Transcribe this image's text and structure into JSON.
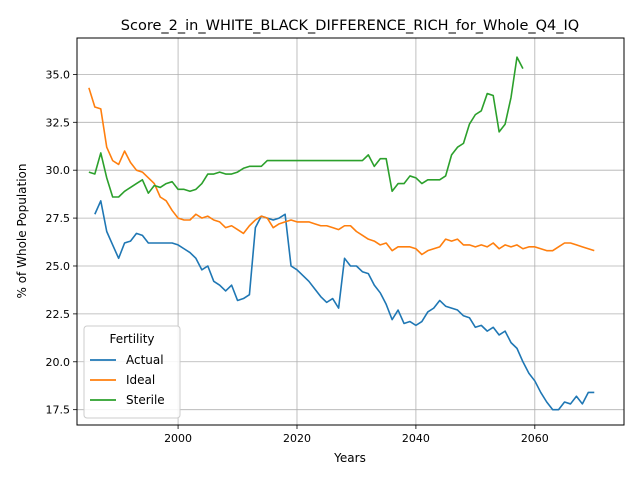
{
  "chart_data": {
    "type": "line",
    "title": "Score_2_in_WHITE_BLACK_DIFFERENCE_RICH_for_Whole_Q4_IQ",
    "xlabel": "Years",
    "ylabel": "% of Whole Population",
    "xlim": [
      1983,
      2075
    ],
    "ylim": [
      16.7,
      36.9
    ],
    "xticks": [
      2000,
      2020,
      2040,
      2060
    ],
    "yticks": [
      17.5,
      20.0,
      22.5,
      25.0,
      27.5,
      30.0,
      32.5,
      35.0
    ],
    "xtick_labels": [
      "2000",
      "2020",
      "2040",
      "2060"
    ],
    "ytick_labels": [
      "17.5",
      "20.0",
      "22.5",
      "25.0",
      "27.5",
      "30.0",
      "32.5",
      "35.0"
    ],
    "grid": true,
    "legend": {
      "title": "Fertility",
      "placement": "lower-left"
    },
    "series": [
      {
        "name": "Actual",
        "color": "#1f77b4",
        "x": [
          1986,
          1987,
          1988,
          1989,
          1990,
          1991,
          1992,
          1993,
          1994,
          1995,
          1996,
          1997,
          1998,
          1999,
          2000,
          2001,
          2002,
          2003,
          2004,
          2005,
          2006,
          2007,
          2008,
          2009,
          2010,
          2011,
          2012,
          2013,
          2014,
          2015,
          2016,
          2017,
          2018,
          2019,
          2020,
          2021,
          2022,
          2023,
          2024,
          2025,
          2026,
          2027,
          2028,
          2029,
          2030,
          2031,
          2032,
          2033,
          2034,
          2035,
          2036,
          2037,
          2038,
          2039,
          2040,
          2041,
          2042,
          2043,
          2044,
          2045,
          2046,
          2047,
          2048,
          2049,
          2050,
          2051,
          2052,
          2053,
          2054,
          2055,
          2056,
          2057,
          2058,
          2059,
          2060,
          2061,
          2062,
          2063,
          2064,
          2065,
          2066,
          2067,
          2068,
          2069,
          2070
        ],
        "values": [
          27.7,
          28.4,
          26.8,
          26.1,
          25.4,
          26.2,
          26.3,
          26.7,
          26.6,
          26.2,
          26.2,
          26.2,
          26.2,
          26.2,
          26.1,
          25.9,
          25.7,
          25.4,
          24.8,
          25.0,
          24.2,
          24.0,
          23.7,
          24.0,
          23.2,
          23.3,
          23.5,
          27.0,
          27.6,
          27.5,
          27.4,
          27.5,
          27.7,
          25.0,
          24.8,
          24.5,
          24.2,
          23.8,
          23.4,
          23.1,
          23.3,
          22.8,
          25.4,
          25.0,
          25.0,
          24.7,
          24.6,
          24.0,
          23.6,
          23.0,
          22.2,
          22.7,
          22.0,
          22.1,
          21.9,
          22.1,
          22.6,
          22.8,
          23.2,
          22.9,
          22.8,
          22.7,
          22.4,
          22.3,
          21.8,
          21.9,
          21.6,
          21.8,
          21.4,
          21.6,
          21.0,
          20.7,
          20.0,
          19.4,
          19.0,
          18.4,
          17.9,
          17.5,
          17.5,
          17.9,
          17.8,
          18.2,
          17.8,
          18.4,
          18.4
        ]
      },
      {
        "name": "Ideal",
        "color": "#ff7f0e",
        "x": [
          1985,
          1986,
          1987,
          1988,
          1989,
          1990,
          1991,
          1992,
          1993,
          1994,
          1995,
          1996,
          1997,
          1998,
          1999,
          2000,
          2001,
          2002,
          2003,
          2004,
          2005,
          2006,
          2007,
          2008,
          2009,
          2010,
          2011,
          2012,
          2013,
          2014,
          2015,
          2016,
          2017,
          2018,
          2019,
          2020,
          2021,
          2022,
          2023,
          2024,
          2025,
          2026,
          2027,
          2028,
          2029,
          2030,
          2031,
          2032,
          2033,
          2034,
          2035,
          2036,
          2037,
          2038,
          2039,
          2040,
          2041,
          2042,
          2043,
          2044,
          2045,
          2046,
          2047,
          2048,
          2049,
          2050,
          2051,
          2052,
          2053,
          2054,
          2055,
          2056,
          2057,
          2058,
          2059,
          2060,
          2061,
          2062,
          2063,
          2064,
          2065,
          2066,
          2067,
          2068,
          2069,
          2070
        ],
        "values": [
          34.3,
          33.3,
          33.2,
          31.2,
          30.5,
          30.3,
          31.0,
          30.4,
          30.0,
          29.9,
          29.6,
          29.3,
          28.6,
          28.4,
          27.9,
          27.5,
          27.4,
          27.4,
          27.7,
          27.5,
          27.6,
          27.4,
          27.3,
          27.0,
          27.1,
          26.9,
          26.7,
          27.1,
          27.4,
          27.6,
          27.5,
          27.0,
          27.2,
          27.3,
          27.4,
          27.3,
          27.3,
          27.3,
          27.2,
          27.1,
          27.1,
          27.0,
          26.9,
          27.1,
          27.1,
          26.8,
          26.6,
          26.4,
          26.3,
          26.1,
          26.2,
          25.8,
          26.0,
          26.0,
          26.0,
          25.9,
          25.6,
          25.8,
          25.9,
          26.0,
          26.4,
          26.3,
          26.4,
          26.1,
          26.1,
          26.0,
          26.1,
          26.0,
          26.2,
          25.9,
          26.1,
          26.0,
          26.1,
          25.9,
          26.0,
          26.0,
          25.9,
          25.8,
          25.8,
          26.0,
          26.2,
          26.2,
          26.1,
          26.0,
          25.9,
          25.8
        ]
      },
      {
        "name": "Sterile",
        "color": "#2ca02c",
        "x": [
          1985,
          1986,
          1987,
          1988,
          1989,
          1990,
          1991,
          1992,
          1993,
          1994,
          1995,
          1996,
          1997,
          1998,
          1999,
          2000,
          2001,
          2002,
          2003,
          2004,
          2005,
          2006,
          2007,
          2008,
          2009,
          2010,
          2011,
          2012,
          2013,
          2014,
          2015,
          2016,
          2017,
          2018,
          2019,
          2020,
          2021,
          2022,
          2023,
          2024,
          2025,
          2026,
          2027,
          2028,
          2029,
          2030,
          2031,
          2032,
          2033,
          2034,
          2035,
          2036,
          2037,
          2038,
          2039,
          2040,
          2041,
          2042,
          2043,
          2044,
          2045,
          2046,
          2047,
          2048,
          2049,
          2050,
          2051,
          2052,
          2053,
          2054,
          2055,
          2056,
          2057,
          2058
        ],
        "values": [
          29.9,
          29.8,
          30.9,
          29.6,
          28.6,
          28.6,
          28.9,
          29.1,
          29.3,
          29.5,
          28.8,
          29.2,
          29.1,
          29.3,
          29.4,
          29.0,
          29.0,
          28.9,
          29.0,
          29.3,
          29.8,
          29.8,
          29.9,
          29.8,
          29.8,
          29.9,
          30.1,
          30.2,
          30.2,
          30.2,
          30.5,
          30.5,
          30.5,
          30.5,
          30.5,
          30.5,
          30.5,
          30.5,
          30.5,
          30.5,
          30.5,
          30.5,
          30.5,
          30.5,
          30.5,
          30.5,
          30.5,
          30.8,
          30.2,
          30.6,
          30.6,
          28.9,
          29.3,
          29.3,
          29.7,
          29.6,
          29.3,
          29.5,
          29.5,
          29.5,
          29.7,
          30.8,
          31.2,
          31.4,
          32.4,
          32.9,
          33.1,
          34.0,
          33.9,
          32.0,
          32.4,
          33.8,
          35.9,
          35.3
        ]
      }
    ]
  }
}
